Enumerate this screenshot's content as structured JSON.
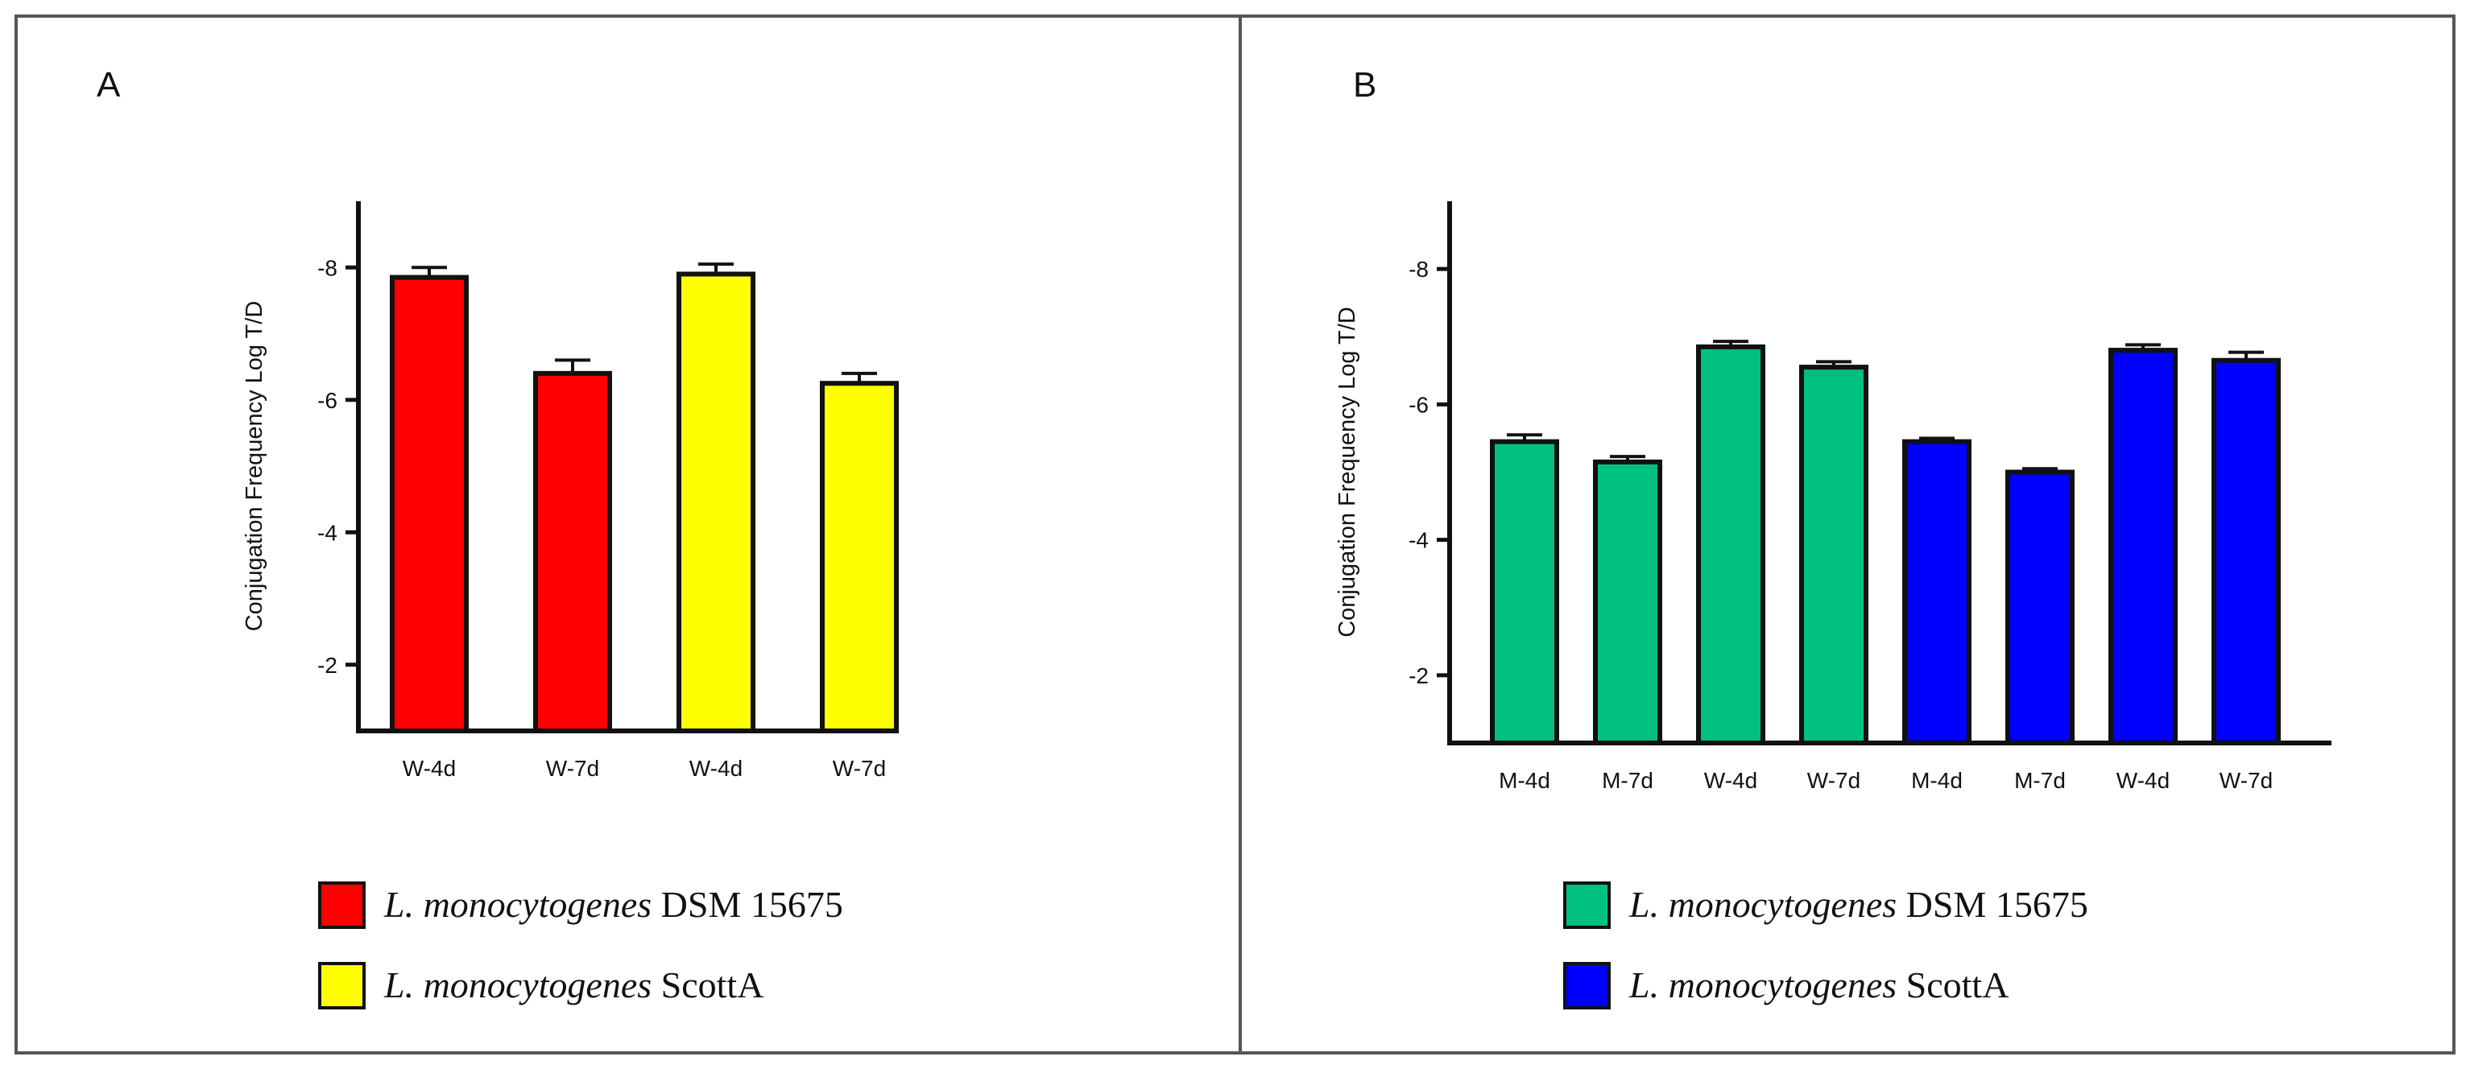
{
  "chart_data": [
    {
      "type": "bar",
      "panel_label": "A",
      "ylabel": "Conjugation Frequency Log T/D",
      "ylim": [
        -1,
        -9
      ],
      "yticks": [
        "-8",
        "-6",
        "-4",
        "-2"
      ],
      "categories": [
        "W-4d",
        "W-7d",
        "W-4d",
        "W-7d"
      ],
      "values": [
        -7.85,
        -6.4,
        -7.9,
        -6.25
      ],
      "errors": [
        0.15,
        0.2,
        0.15,
        0.15
      ],
      "bar_colors": [
        "#ff0000",
        "#ff0000",
        "#ffff00",
        "#ffff00"
      ],
      "legend": [
        {
          "species": "L. monocytogenes",
          "strain": "DSM 15675",
          "color": "#ff0000"
        },
        {
          "species": "L. monocytogenes",
          "strain": "ScottA",
          "color": "#ffff00"
        }
      ]
    },
    {
      "type": "bar",
      "panel_label": "B",
      "ylabel": "Conjugation Frequency Log T/D",
      "ylim": [
        -1,
        -9
      ],
      "yticks": [
        "-8",
        "-6",
        "-4",
        "-2"
      ],
      "categories": [
        "M-4d",
        "M-7d",
        "W-4d",
        "W-7d",
        "M-4d",
        "M-7d",
        "W-4d",
        "W-7d"
      ],
      "values": [
        -5.45,
        -5.15,
        -6.85,
        -6.55,
        -5.45,
        -5.0,
        -6.8,
        -6.65
      ],
      "errors": [
        0.1,
        0.08,
        0.08,
        0.08,
        0.05,
        0.05,
        0.08,
        0.12
      ],
      "bar_colors": [
        "#00c080",
        "#00c080",
        "#00c080",
        "#00c080",
        "#0000ff",
        "#0000ff",
        "#0000ff",
        "#0000ff"
      ],
      "legend": [
        {
          "species": "L. monocytogenes",
          "strain": "DSM 15675",
          "color": "#00c080"
        },
        {
          "species": "L. monocytogenes",
          "strain": "ScottA",
          "color": "#0000ff"
        }
      ]
    }
  ]
}
